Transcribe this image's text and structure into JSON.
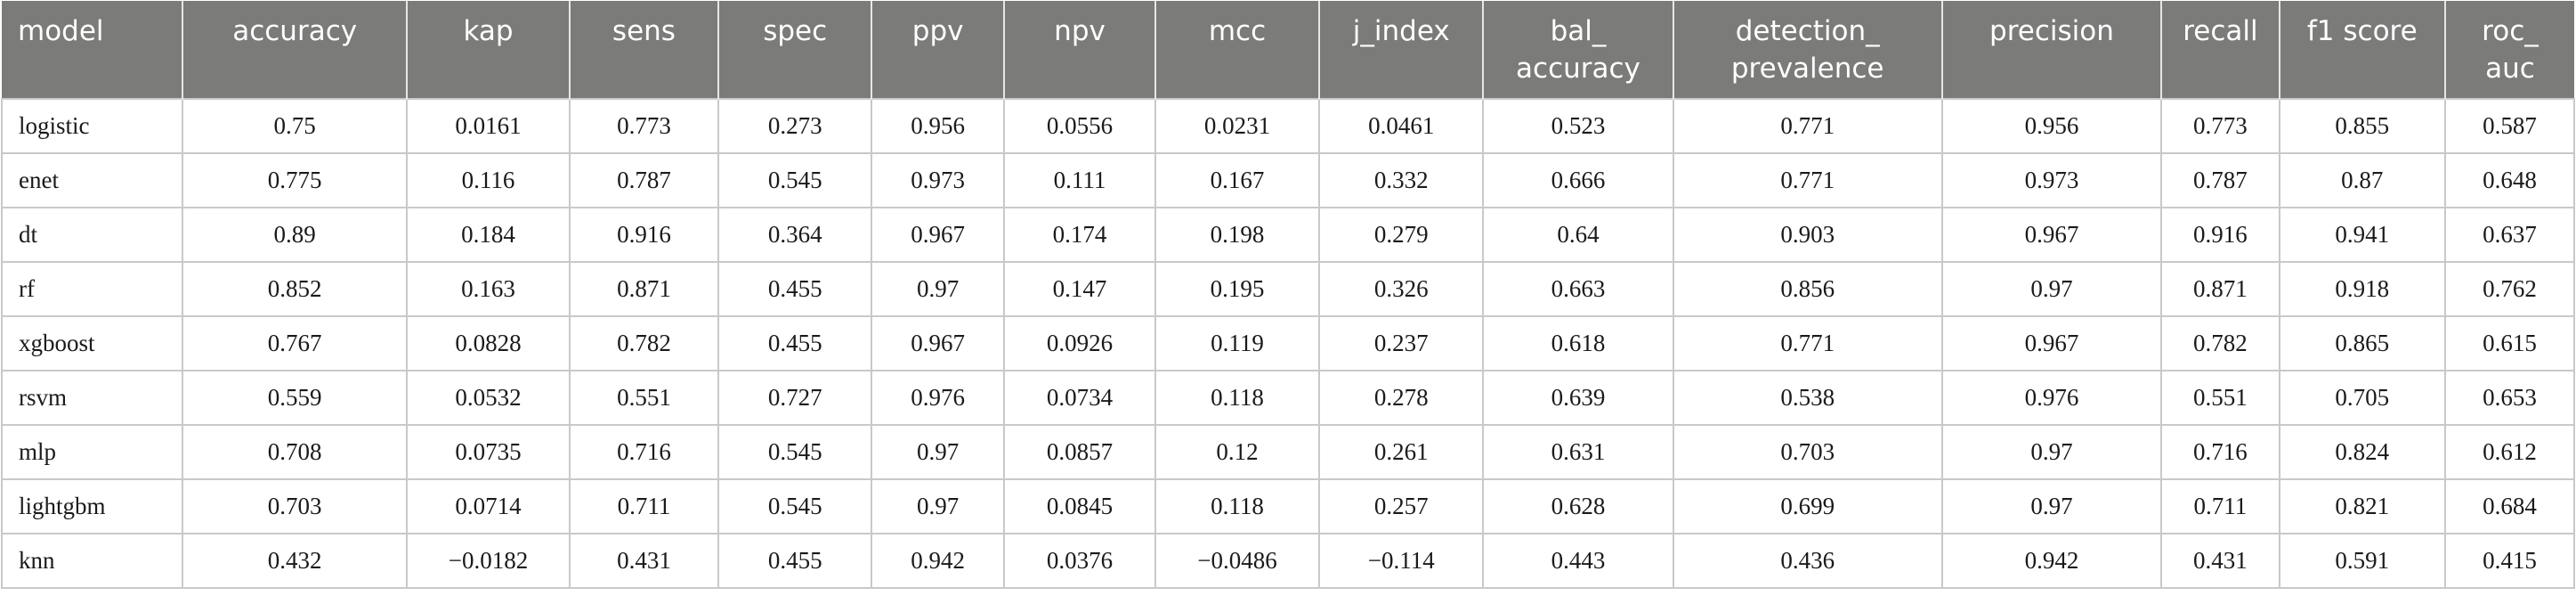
{
  "table": {
    "headers": [
      "model",
      "accuracy",
      "kap",
      "sens",
      "spec",
      "ppv",
      "npv",
      "mcc",
      "j_index",
      "bal_ accuracy",
      "detection_ prevalence",
      "precision",
      "recall",
      "f1 score",
      "roc_ auc"
    ],
    "rows": [
      [
        "logistic",
        "0.75",
        "0.0161",
        "0.773",
        "0.273",
        "0.956",
        "0.0556",
        "0.0231",
        "0.0461",
        "0.523",
        "0.771",
        "0.956",
        "0.773",
        "0.855",
        "0.587"
      ],
      [
        "enet",
        "0.775",
        "0.116",
        "0.787",
        "0.545",
        "0.973",
        "0.111",
        "0.167",
        "0.332",
        "0.666",
        "0.771",
        "0.973",
        "0.787",
        "0.87",
        "0.648"
      ],
      [
        "dt",
        "0.89",
        "0.184",
        "0.916",
        "0.364",
        "0.967",
        "0.174",
        "0.198",
        "0.279",
        "0.64",
        "0.903",
        "0.967",
        "0.916",
        "0.941",
        "0.637"
      ],
      [
        "rf",
        "0.852",
        "0.163",
        "0.871",
        "0.455",
        "0.97",
        "0.147",
        "0.195",
        "0.326",
        "0.663",
        "0.856",
        "0.97",
        "0.871",
        "0.918",
        "0.762"
      ],
      [
        "xgboost",
        "0.767",
        "0.0828",
        "0.782",
        "0.455",
        "0.967",
        "0.0926",
        "0.119",
        "0.237",
        "0.618",
        "0.771",
        "0.967",
        "0.782",
        "0.865",
        "0.615"
      ],
      [
        "rsvm",
        "0.559",
        "0.0532",
        "0.551",
        "0.727",
        "0.976",
        "0.0734",
        "0.118",
        "0.278",
        "0.639",
        "0.538",
        "0.976",
        "0.551",
        "0.705",
        "0.653"
      ],
      [
        "mlp",
        "0.708",
        "0.0735",
        "0.716",
        "0.545",
        "0.97",
        "0.0857",
        "0.12",
        "0.261",
        "0.631",
        "0.703",
        "0.97",
        "0.716",
        "0.824",
        "0.612"
      ],
      [
        "lightgbm",
        "0.703",
        "0.0714",
        "0.711",
        "0.545",
        "0.97",
        "0.0845",
        "0.118",
        "0.257",
        "0.628",
        "0.699",
        "0.97",
        "0.711",
        "0.821",
        "0.684"
      ],
      [
        "knn",
        "0.432",
        "−0.0182",
        "0.431",
        "0.455",
        "0.942",
        "0.0376",
        "−0.0486",
        "−0.114",
        "0.443",
        "0.436",
        "0.942",
        "0.431",
        "0.591",
        "0.415"
      ]
    ]
  }
}
